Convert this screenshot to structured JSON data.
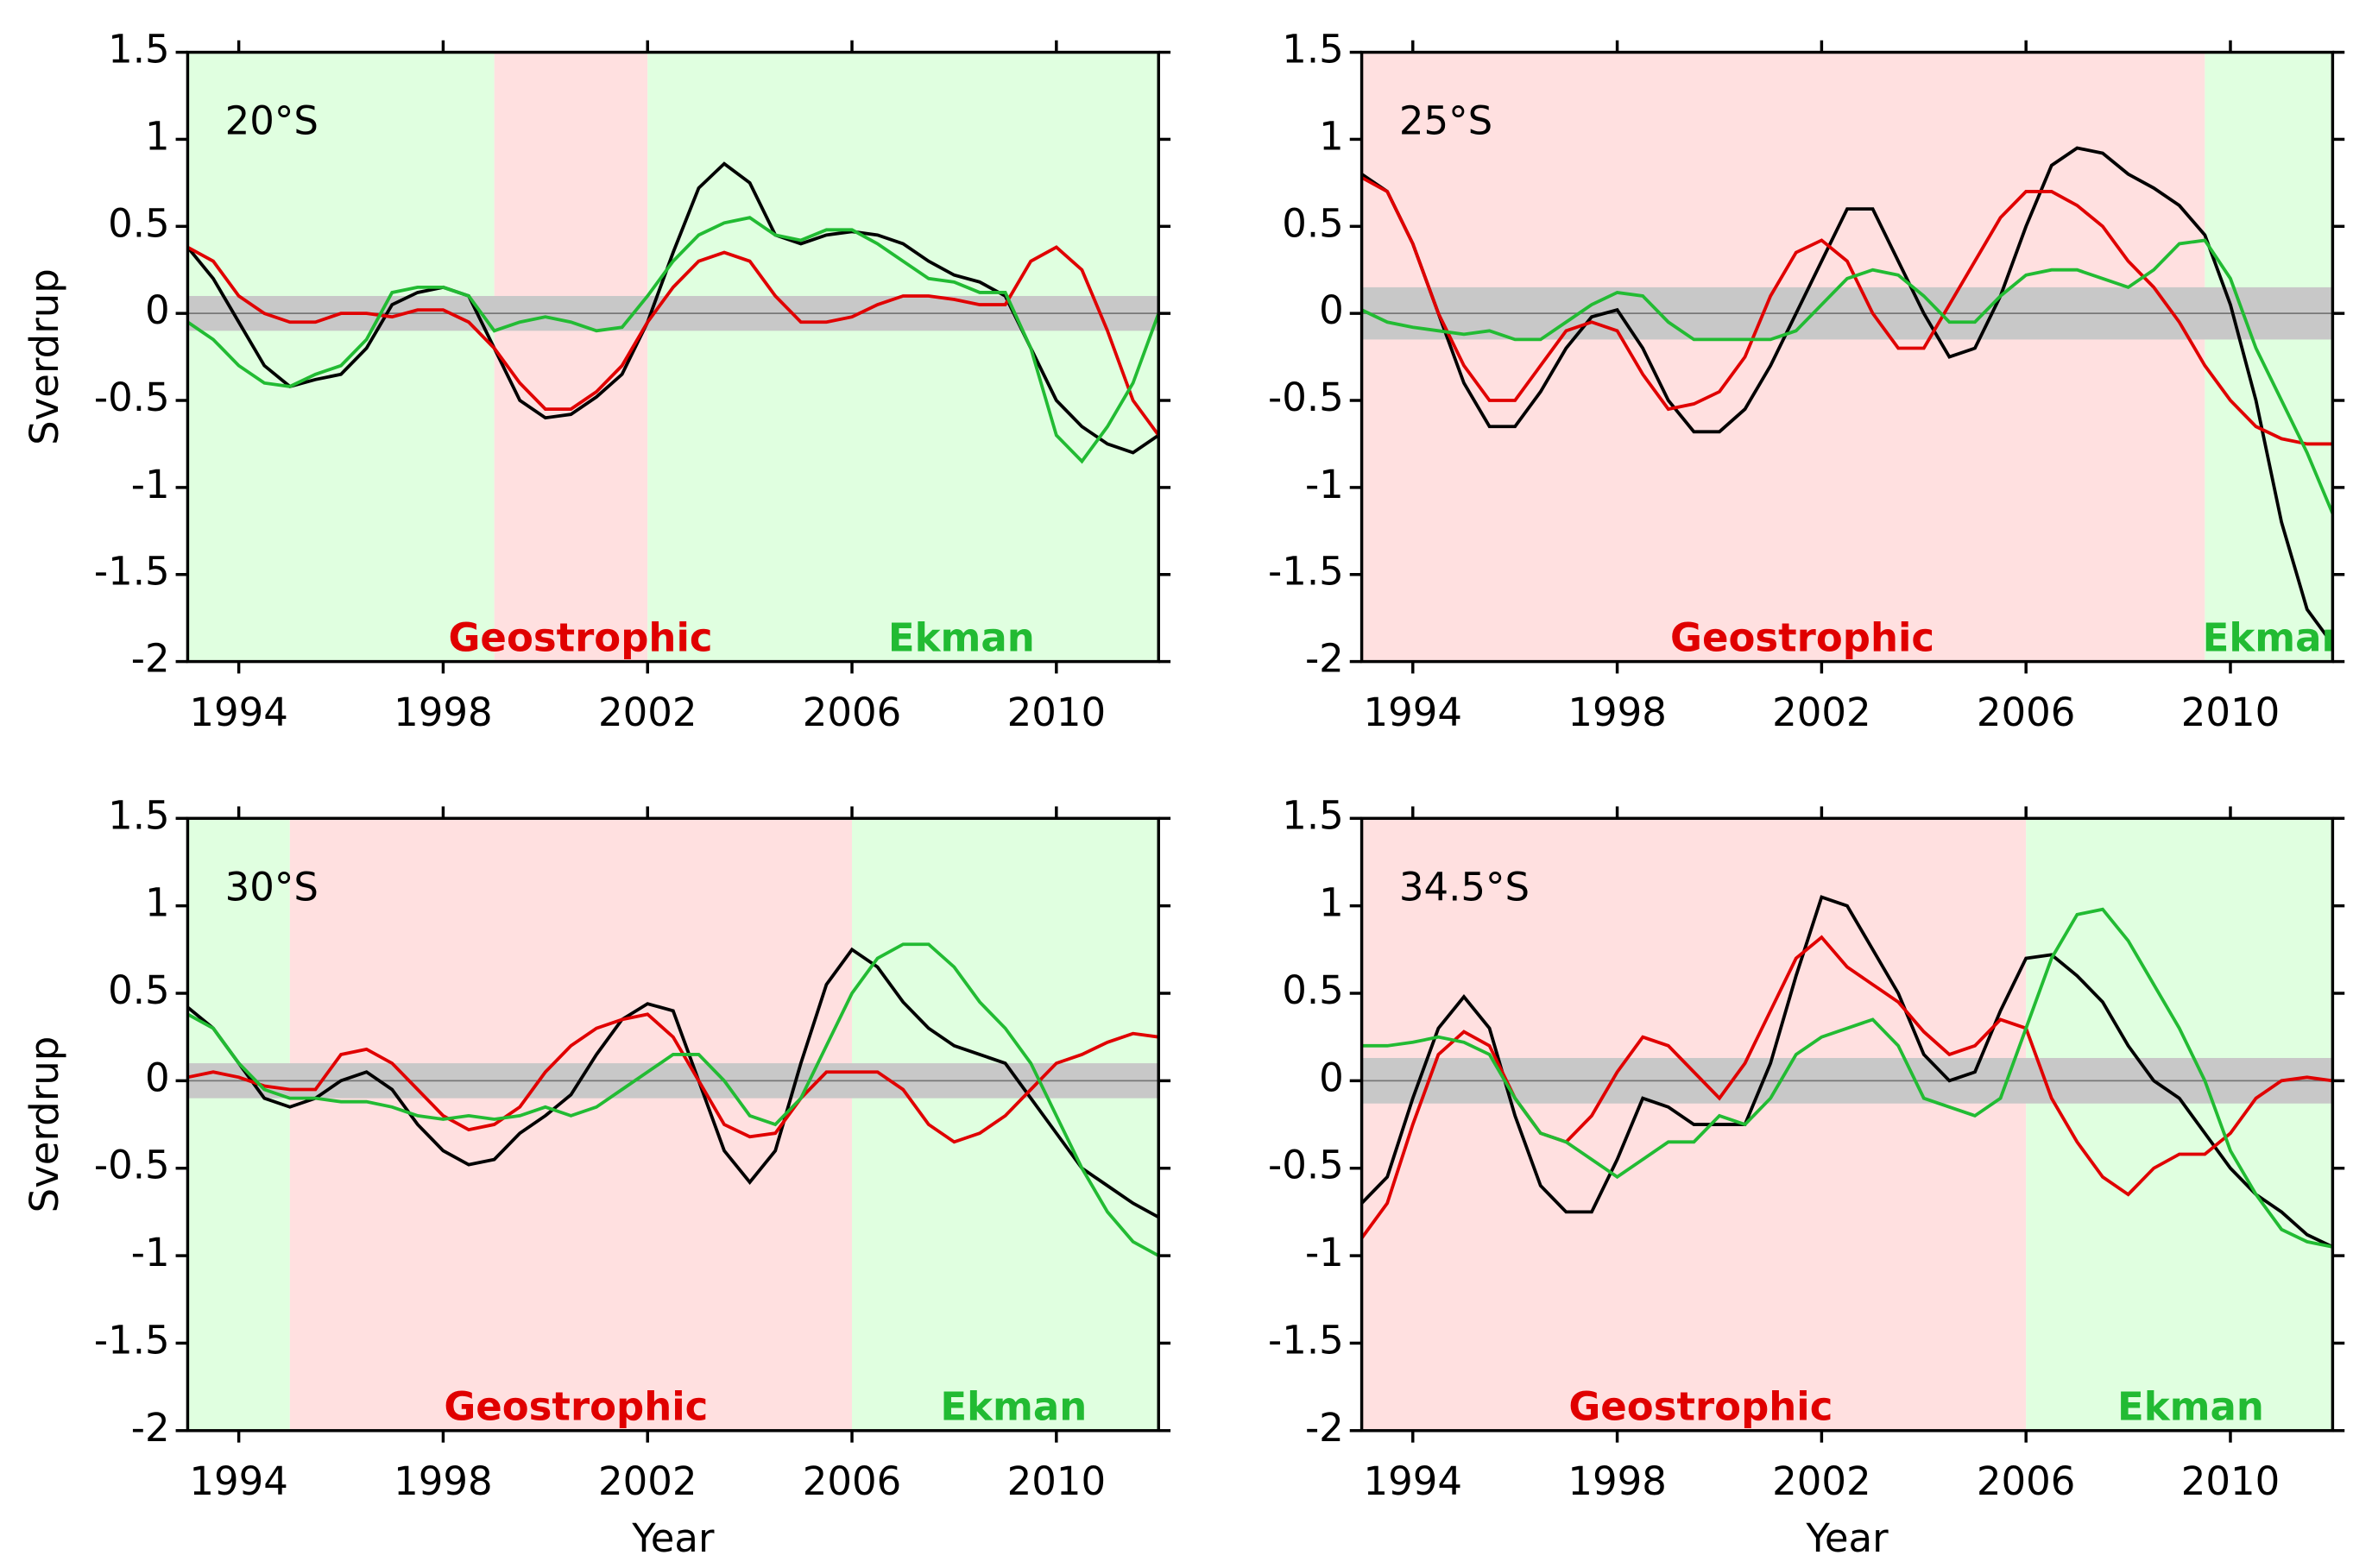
{
  "chart_data": [
    {
      "type": "line",
      "label": "20°S",
      "ylabel": "Sverdrup",
      "xlim": [
        1993,
        2012
      ],
      "ylim": [
        -2,
        1.5
      ],
      "xticks": [
        1994,
        1998,
        2002,
        2006,
        2010
      ],
      "yticks": [
        1.5,
        1,
        0.5,
        0,
        -0.5,
        -1,
        -1.5,
        -2
      ],
      "regions": [
        {
          "start": 1993,
          "end": 1999,
          "color": "#e0ffe0"
        },
        {
          "start": 1999,
          "end": 2002,
          "color": "#ffe0e0"
        },
        {
          "start": 2002,
          "end": 2012,
          "color": "#e0ffe0"
        }
      ],
      "band": [
        -0.1,
        0.1
      ],
      "band_color": "#c8c8c8",
      "region_labels": [
        {
          "text": "Geostrophic",
          "color": "#e00000"
        },
        {
          "text": "Ekman",
          "color": "#22bb33"
        }
      ],
      "x": [
        1993,
        1993.5,
        1994,
        1994.5,
        1995,
        1995.5,
        1996,
        1996.5,
        1997,
        1997.5,
        1998,
        1998.5,
        1999,
        1999.5,
        2000,
        2000.5,
        2001,
        2001.5,
        2002,
        2002.5,
        2003,
        2003.5,
        2004,
        2004.5,
        2005,
        2005.5,
        2006,
        2006.5,
        2007,
        2007.5,
        2008,
        2008.5,
        2009,
        2009.5,
        2010,
        2010.5,
        2011,
        2011.5,
        2012
      ],
      "series": [
        {
          "color": "#000000",
          "values": [
            0.38,
            0.2,
            -0.05,
            -0.3,
            -0.42,
            -0.38,
            -0.35,
            -0.2,
            0.05,
            0.12,
            0.15,
            0.1,
            -0.2,
            -0.5,
            -0.6,
            -0.58,
            -0.48,
            -0.35,
            -0.05,
            0.35,
            0.72,
            0.86,
            0.75,
            0.45,
            0.4,
            0.45,
            0.47,
            0.45,
            0.4,
            0.3,
            0.22,
            0.18,
            0.1,
            -0.2,
            -0.5,
            -0.65,
            -0.75,
            -0.8,
            -0.7
          ]
        },
        {
          "color": "#e00000",
          "values": [
            0.38,
            0.3,
            0.1,
            0,
            -0.05,
            -0.05,
            0,
            0,
            -0.02,
            0.02,
            0.02,
            -0.05,
            -0.2,
            -0.4,
            -0.55,
            -0.55,
            -0.45,
            -0.3,
            -0.05,
            0.15,
            0.3,
            0.35,
            0.3,
            0.1,
            -0.05,
            -0.05,
            -0.02,
            0.05,
            0.1,
            0.1,
            0.08,
            0.05,
            0.05,
            0.3,
            0.38,
            0.25,
            -0.1,
            -0.5,
            -0.7
          ]
        },
        {
          "color": "#22bb33",
          "values": [
            -0.05,
            -0.15,
            -0.3,
            -0.4,
            -0.42,
            -0.35,
            -0.3,
            -0.15,
            0.12,
            0.15,
            0.15,
            0.1,
            -0.1,
            -0.05,
            -0.02,
            -0.05,
            -0.1,
            -0.08,
            0.1,
            0.3,
            0.45,
            0.52,
            0.55,
            0.45,
            0.42,
            0.48,
            0.48,
            0.4,
            0.3,
            0.2,
            0.18,
            0.12,
            0.12,
            -0.2,
            -0.7,
            -0.85,
            -0.65,
            -0.4,
            0.0
          ]
        }
      ]
    },
    {
      "type": "line",
      "label": "25°S",
      "xlim": [
        1993,
        2012
      ],
      "ylim": [
        -2,
        1.5
      ],
      "xticks": [
        1994,
        1998,
        2002,
        2006,
        2010
      ],
      "yticks": [
        1.5,
        1,
        0.5,
        0,
        -0.5,
        -1,
        -1.5,
        -2
      ],
      "regions": [
        {
          "start": 1993,
          "end": 2009.5,
          "color": "#ffe0e0"
        },
        {
          "start": 2009.5,
          "end": 2012,
          "color": "#e0ffe0"
        }
      ],
      "band": [
        -0.15,
        0.15
      ],
      "band_color": "#c8c8c8",
      "region_labels": [
        {
          "text": "Geostrophic",
          "color": "#e00000"
        },
        {
          "text": "Ekman",
          "color": "#22bb33"
        }
      ],
      "x": [
        1993,
        1993.5,
        1994,
        1994.5,
        1995,
        1995.5,
        1996,
        1996.5,
        1997,
        1997.5,
        1998,
        1998.5,
        1999,
        1999.5,
        2000,
        2000.5,
        2001,
        2001.5,
        2002,
        2002.5,
        2003,
        2003.5,
        2004,
        2004.5,
        2005,
        2005.5,
        2006,
        2006.5,
        2007,
        2007.5,
        2008,
        2008.5,
        2009,
        2009.5,
        2010,
        2010.5,
        2011,
        2011.5,
        2012
      ],
      "series": [
        {
          "color": "#000000",
          "values": [
            0.8,
            0.7,
            0.4,
            0,
            -0.4,
            -0.65,
            -0.65,
            -0.45,
            -0.2,
            -0.02,
            0.02,
            -0.2,
            -0.5,
            -0.68,
            -0.68,
            -0.55,
            -0.3,
            0,
            0.3,
            0.6,
            0.6,
            0.3,
            0,
            -0.25,
            -0.2,
            0.1,
            0.5,
            0.85,
            0.95,
            0.92,
            0.8,
            0.72,
            0.62,
            0.45,
            0.05,
            -0.5,
            -1.2,
            -1.7,
            -1.9
          ]
        },
        {
          "color": "#e00000",
          "values": [
            0.78,
            0.7,
            0.4,
            0,
            -0.3,
            -0.5,
            -0.5,
            -0.3,
            -0.1,
            -0.05,
            -0.1,
            -0.35,
            -0.55,
            -0.52,
            -0.45,
            -0.25,
            0.1,
            0.35,
            0.42,
            0.3,
            0,
            -0.2,
            -0.2,
            0.05,
            0.3,
            0.55,
            0.7,
            0.7,
            0.62,
            0.5,
            0.3,
            0.15,
            -0.05,
            -0.3,
            -0.5,
            -0.65,
            -0.72,
            -0.75,
            -0.75
          ]
        },
        {
          "color": "#22bb33",
          "values": [
            0.02,
            -0.05,
            -0.08,
            -0.1,
            -0.12,
            -0.1,
            -0.15,
            -0.15,
            -0.05,
            0.05,
            0.12,
            0.1,
            -0.05,
            -0.15,
            -0.15,
            -0.15,
            -0.15,
            -0.1,
            0.05,
            0.2,
            0.25,
            0.22,
            0.1,
            -0.05,
            -0.05,
            0.1,
            0.22,
            0.25,
            0.25,
            0.2,
            0.15,
            0.25,
            0.4,
            0.42,
            0.2,
            -0.2,
            -0.5,
            -0.8,
            -1.15
          ]
        }
      ]
    },
    {
      "type": "line",
      "label": "30°S",
      "ylabel": "Sverdrup",
      "xlabel": "Year",
      "xlim": [
        1993,
        2012
      ],
      "ylim": [
        -2,
        1.5
      ],
      "xticks": [
        1994,
        1998,
        2002,
        2006,
        2010
      ],
      "yticks": [
        1.5,
        1,
        0.5,
        0,
        -0.5,
        -1,
        -1.5,
        -2
      ],
      "regions": [
        {
          "start": 1993,
          "end": 1995,
          "color": "#e0ffe0"
        },
        {
          "start": 1995,
          "end": 2006,
          "color": "#ffe0e0"
        },
        {
          "start": 2006,
          "end": 2012,
          "color": "#e0ffe0"
        }
      ],
      "band": [
        -0.1,
        0.1
      ],
      "band_color": "#c8c8c8",
      "region_labels": [
        {
          "text": "Geostrophic",
          "color": "#e00000"
        },
        {
          "text": "Ekman",
          "color": "#22bb33"
        }
      ],
      "x": [
        1993,
        1993.5,
        1994,
        1994.5,
        1995,
        1995.5,
        1996,
        1996.5,
        1997,
        1997.5,
        1998,
        1998.5,
        1999,
        1999.5,
        2000,
        2000.5,
        2001,
        2001.5,
        2002,
        2002.5,
        2003,
        2003.5,
        2004,
        2004.5,
        2005,
        2005.5,
        2006,
        2006.5,
        2007,
        2007.5,
        2008,
        2008.5,
        2009,
        2009.5,
        2010,
        2010.5,
        2011,
        2011.5,
        2012
      ],
      "series": [
        {
          "color": "#000000",
          "values": [
            0.42,
            0.3,
            0.1,
            -0.1,
            -0.15,
            -0.1,
            0,
            0.05,
            -0.05,
            -0.25,
            -0.4,
            -0.48,
            -0.45,
            -0.3,
            -0.2,
            -0.08,
            0.15,
            0.35,
            0.44,
            0.4,
            0,
            -0.4,
            -0.58,
            -0.4,
            0.1,
            0.55,
            0.75,
            0.65,
            0.45,
            0.3,
            0.2,
            0.15,
            0.1,
            -0.1,
            -0.3,
            -0.5,
            -0.6,
            -0.7,
            -0.78
          ]
        },
        {
          "color": "#e00000",
          "values": [
            0.02,
            0.05,
            0.02,
            -0.03,
            -0.05,
            -0.05,
            0.15,
            0.18,
            0.1,
            -0.05,
            -0.2,
            -0.28,
            -0.25,
            -0.15,
            0.05,
            0.2,
            0.3,
            0.35,
            0.38,
            0.25,
            0,
            -0.25,
            -0.32,
            -0.3,
            -0.1,
            0.05,
            0.05,
            0.05,
            -0.05,
            -0.25,
            -0.35,
            -0.3,
            -0.2,
            -0.05,
            0.1,
            0.15,
            0.22,
            0.27,
            0.25
          ]
        },
        {
          "color": "#22bb33",
          "values": [
            0.38,
            0.3,
            0.1,
            -0.05,
            -0.1,
            -0.1,
            -0.12,
            -0.12,
            -0.15,
            -0.2,
            -0.22,
            -0.2,
            -0.22,
            -0.2,
            -0.15,
            -0.2,
            -0.15,
            -0.05,
            0.05,
            0.15,
            0.15,
            0,
            -0.2,
            -0.25,
            -0.1,
            0.2,
            0.5,
            0.7,
            0.78,
            0.78,
            0.65,
            0.45,
            0.3,
            0.1,
            -0.2,
            -0.5,
            -0.75,
            -0.92,
            -1.0
          ]
        }
      ]
    },
    {
      "type": "line",
      "label": "34.5°S",
      "xlabel": "Year",
      "xlim": [
        1993,
        2012
      ],
      "ylim": [
        -2,
        1.5
      ],
      "xticks": [
        1994,
        1998,
        2002,
        2006,
        2010
      ],
      "yticks": [
        1.5,
        1,
        0.5,
        0,
        -0.5,
        -1,
        -1.5,
        -2
      ],
      "regions": [
        {
          "start": 1993,
          "end": 2006,
          "color": "#ffe0e0"
        },
        {
          "start": 2006,
          "end": 2012,
          "color": "#e0ffe0"
        }
      ],
      "band": [
        -0.13,
        0.13
      ],
      "band_color": "#c8c8c8",
      "region_labels": [
        {
          "text": "Geostrophic",
          "color": "#e00000"
        },
        {
          "text": "Ekman",
          "color": "#22bb33"
        }
      ],
      "x": [
        1993,
        1993.5,
        1994,
        1994.5,
        1995,
        1995.5,
        1996,
        1996.5,
        1997,
        1997.5,
        1998,
        1998.5,
        1999,
        1999.5,
        2000,
        2000.5,
        2001,
        2001.5,
        2002,
        2002.5,
        2003,
        2003.5,
        2004,
        2004.5,
        2005,
        2005.5,
        2006,
        2006.5,
        2007,
        2007.5,
        2008,
        2008.5,
        2009,
        2009.5,
        2010,
        2010.5,
        2011,
        2011.5,
        2012
      ],
      "series": [
        {
          "color": "#000000",
          "values": [
            -0.7,
            -0.55,
            -0.1,
            0.3,
            0.48,
            0.3,
            -0.2,
            -0.6,
            -0.75,
            -0.75,
            -0.45,
            -0.1,
            -0.15,
            -0.25,
            -0.25,
            -0.25,
            0.1,
            0.6,
            1.05,
            1.0,
            0.75,
            0.5,
            0.15,
            0,
            0.05,
            0.4,
            0.7,
            0.72,
            0.6,
            0.45,
            0.2,
            0,
            -0.1,
            -0.3,
            -0.5,
            -0.65,
            -0.75,
            -0.88,
            -0.95
          ]
        },
        {
          "color": "#e00000",
          "values": [
            -0.9,
            -0.7,
            -0.25,
            0.15,
            0.28,
            0.2,
            -0.1,
            -0.3,
            -0.35,
            -0.2,
            0.05,
            0.25,
            0.2,
            0.05,
            -0.1,
            0.1,
            0.4,
            0.7,
            0.82,
            0.65,
            0.55,
            0.45,
            0.28,
            0.15,
            0.2,
            0.35,
            0.3,
            -0.1,
            -0.35,
            -0.55,
            -0.65,
            -0.5,
            -0.42,
            -0.42,
            -0.3,
            -0.1,
            0,
            0.02,
            0
          ]
        },
        {
          "color": "#22bb33",
          "values": [
            0.2,
            0.2,
            0.22,
            0.25,
            0.22,
            0.15,
            -0.1,
            -0.3,
            -0.35,
            -0.45,
            -0.55,
            -0.45,
            -0.35,
            -0.35,
            -0.2,
            -0.25,
            -0.1,
            0.15,
            0.25,
            0.3,
            0.35,
            0.2,
            -0.1,
            -0.15,
            -0.2,
            -0.1,
            0.3,
            0.7,
            0.95,
            0.98,
            0.8,
            0.55,
            0.3,
            0,
            -0.4,
            -0.65,
            -0.85,
            -0.92,
            -0.95
          ]
        }
      ]
    }
  ]
}
